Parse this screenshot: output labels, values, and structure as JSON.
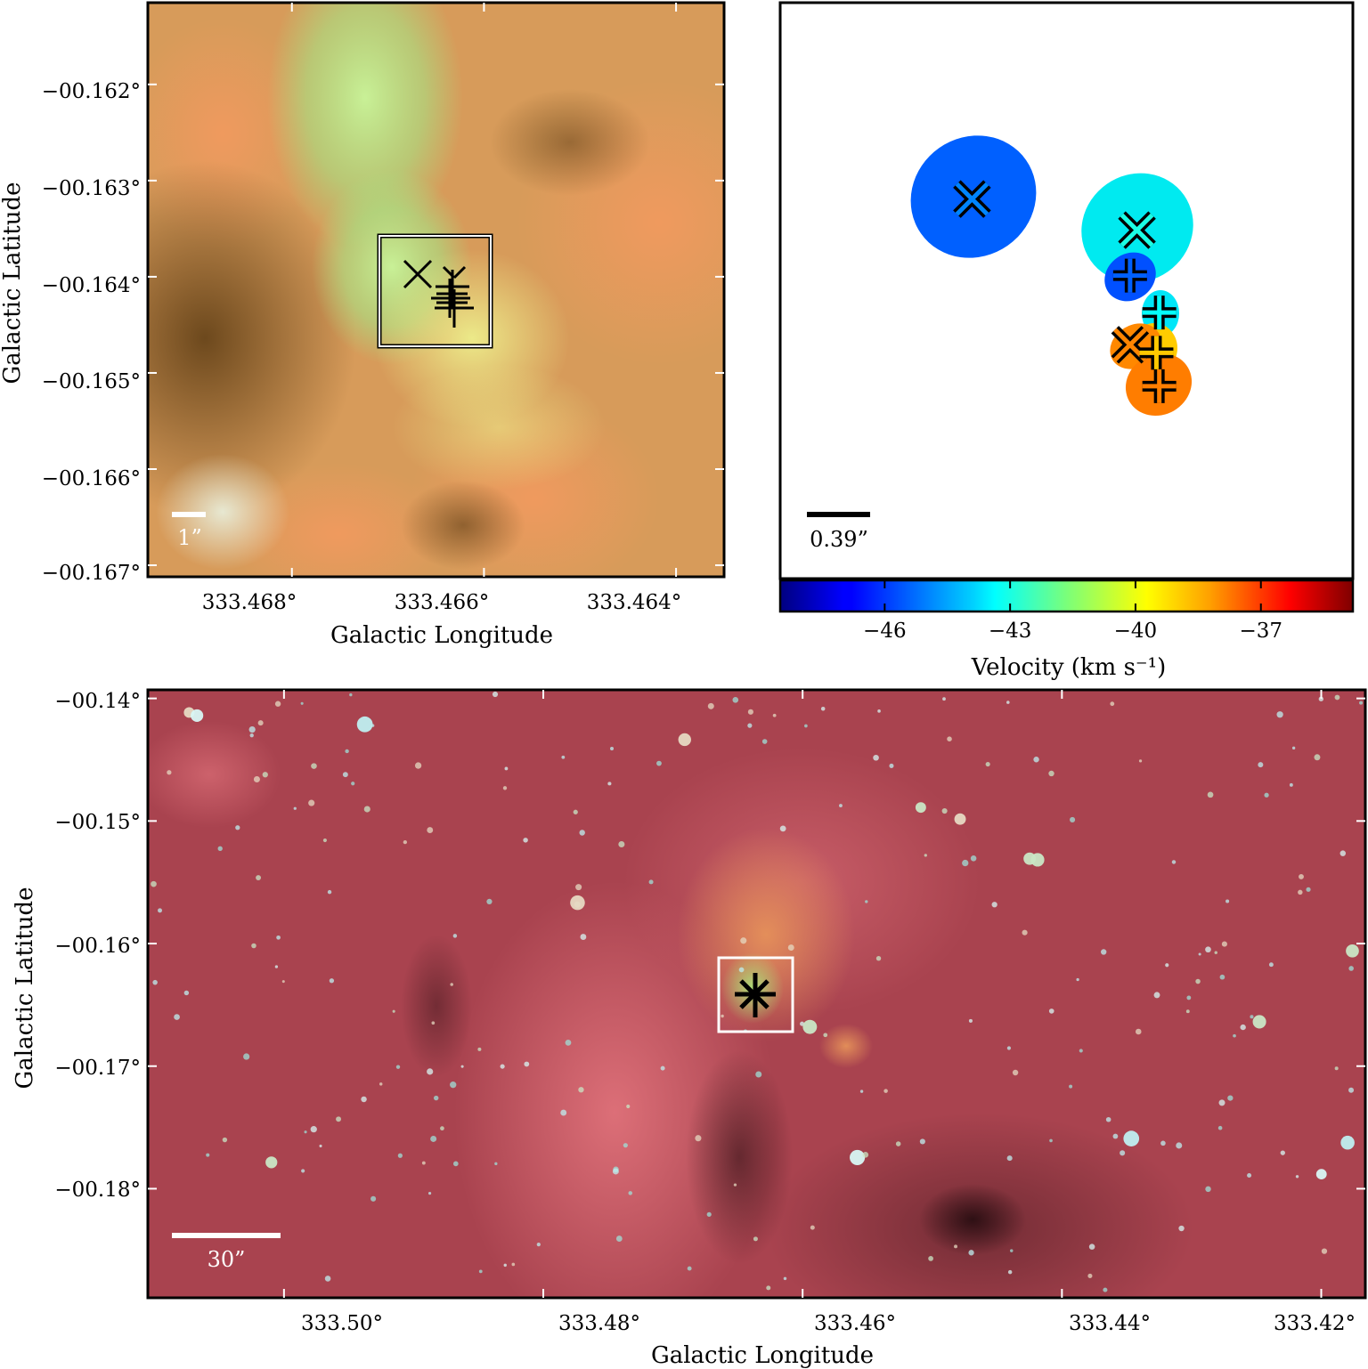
{
  "panels": {
    "topleft": {
      "xlabel": "Galactic Longitude",
      "ylabel": "Galactic Latitude",
      "xticks": [
        "333.468°",
        "333.466°",
        "333.464°"
      ],
      "yticks": [
        "−00.162°",
        "−00.163°",
        "−00.164°",
        "−00.165°",
        "−00.166°",
        "−00.167°"
      ],
      "scalebar_label": "1”"
    },
    "topright": {
      "scalebar_label": "0.39”",
      "colorbar_label": "Velocity (km s⁻¹)",
      "colorbar_ticks": [
        "−46",
        "−43",
        "−40",
        "−37"
      ]
    },
    "bottom": {
      "xlabel": "Galactic Longitude",
      "ylabel": "Galactic Latitude",
      "xticks": [
        "333.50°",
        "333.48°",
        "333.46°",
        "333.44°",
        "333.42°"
      ],
      "yticks": [
        "−00.14°",
        "−00.15°",
        "−00.16°",
        "−00.17°",
        "−00.18°"
      ],
      "scalebar_label": "30”"
    }
  },
  "chart_data": [
    {
      "type": "image",
      "panel": "topleft",
      "xlabel": "Galactic Longitude",
      "ylabel": "Galactic Latitude",
      "xlim": [
        333.4695,
        333.4635
      ],
      "ylim": [
        -0.16712,
        -0.16115
      ],
      "xticks": [
        333.468,
        333.466,
        333.464
      ],
      "yticks": [
        -0.162,
        -0.163,
        -0.164,
        -0.165,
        -0.166,
        -0.167
      ],
      "scalebar": "1”"
    },
    {
      "type": "scatter",
      "panel": "topright",
      "xlim": [
        0,
        1
      ],
      "ylim": [
        0,
        1
      ],
      "points": [
        {
          "marker": "x",
          "velocity": -45.0,
          "x": 0.335,
          "y": 0.659
        },
        {
          "marker": "x",
          "velocity": -43.0,
          "x": 0.623,
          "y": 0.605
        },
        {
          "marker": "+",
          "velocity": -45.5,
          "x": 0.611,
          "y": 0.526
        },
        {
          "marker": "+",
          "velocity": -43.3,
          "x": 0.662,
          "y": 0.462
        },
        {
          "marker": "x",
          "velocity": -38.3,
          "x": 0.611,
          "y": 0.406
        },
        {
          "marker": "+",
          "velocity": -39.2,
          "x": 0.657,
          "y": 0.392
        },
        {
          "marker": "+",
          "velocity": -38.2,
          "x": 0.662,
          "y": 0.334
        }
      ],
      "scalebar": "0.39”",
      "colorbar": {
        "label": "Velocity (km s⁻¹)",
        "range": [
          -48.5,
          -34.8
        ],
        "ticks": [
          -46,
          -43,
          -40,
          -37
        ],
        "cmap": "jet"
      }
    },
    {
      "type": "image",
      "panel": "bottom",
      "xlabel": "Galactic Longitude",
      "ylabel": "Galactic Latitude",
      "xlim": [
        333.5105,
        333.4166
      ],
      "ylim": [
        -0.1889,
        -0.1393
      ],
      "xticks": [
        333.5,
        333.48,
        333.46,
        333.44,
        333.42
      ],
      "yticks": [
        -0.14,
        -0.15,
        -0.16,
        -0.17,
        -0.18
      ],
      "scalebar": "30”"
    }
  ]
}
